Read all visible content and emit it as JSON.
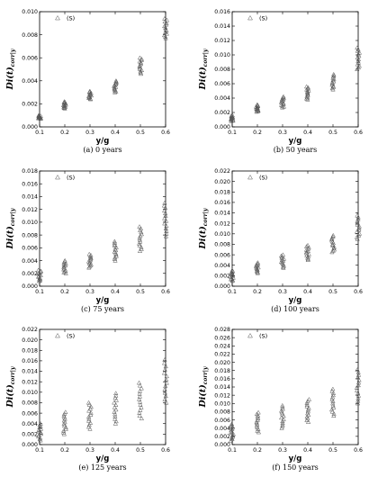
{
  "chart_data": [
    {
      "type": "scatter",
      "caption": "(a) 0 years",
      "xlabel": "y/g",
      "ylabel": "Di(t)",
      "ylabel_sub": "corr|y",
      "xlim": [
        0.1,
        0.6
      ],
      "ylim": [
        0,
        0.01
      ],
      "yticks": [
        "0.000",
        "0.002",
        "0.004",
        "0.006",
        "0.008",
        "0.010"
      ],
      "xticks": [
        "0.1",
        "0.2",
        "0.3",
        "0.4",
        "0.5",
        "0.6"
      ],
      "legend": "(S)",
      "series": [
        {
          "marker": "triangle",
          "ranges": [
            {
              "x": 0.1,
              "min": 0.0007,
              "max": 0.001
            },
            {
              "x": 0.2,
              "min": 0.0016,
              "max": 0.0022
            },
            {
              "x": 0.3,
              "min": 0.0024,
              "max": 0.0031
            },
            {
              "x": 0.4,
              "min": 0.003,
              "max": 0.004
            },
            {
              "x": 0.5,
              "min": 0.0046,
              "max": 0.006
            },
            {
              "x": 0.6,
              "min": 0.0077,
              "max": 0.0094
            }
          ]
        }
      ]
    },
    {
      "type": "scatter",
      "caption": "(b) 50 years",
      "xlabel": "y/g",
      "ylabel": "Di(t)",
      "ylabel_sub": "corr|y",
      "xlim": [
        0.1,
        0.6
      ],
      "ylim": [
        0,
        0.016
      ],
      "yticks": [
        "0.000",
        "0.002",
        "0.004",
        "0.006",
        "0.008",
        "0.010",
        "0.012",
        "0.014",
        "0.016"
      ],
      "xticks": [
        "0.1",
        "0.2",
        "0.3",
        "0.4",
        "0.5",
        "0.6"
      ],
      "legend": "(S)",
      "series": [
        {
          "marker": "triangle",
          "ranges": [
            {
              "x": 0.1,
              "min": 0.0008,
              "max": 0.0016
            },
            {
              "x": 0.2,
              "min": 0.0021,
              "max": 0.0031
            },
            {
              "x": 0.3,
              "min": 0.0027,
              "max": 0.0042
            },
            {
              "x": 0.4,
              "min": 0.0038,
              "max": 0.0056
            },
            {
              "x": 0.5,
              "min": 0.0052,
              "max": 0.0073
            },
            {
              "x": 0.6,
              "min": 0.008,
              "max": 0.011
            }
          ]
        }
      ]
    },
    {
      "type": "scatter",
      "caption": "(c) 75 years",
      "xlabel": "y/g",
      "ylabel": "Di(t)",
      "ylabel_sub": "corr|y",
      "xlim": [
        0.1,
        0.6
      ],
      "ylim": [
        0,
        0.018
      ],
      "yticks": [
        "0.000",
        "0.002",
        "0.004",
        "0.006",
        "0.008",
        "0.010",
        "0.012",
        "0.014",
        "0.016",
        "0.018"
      ],
      "xticks": [
        "0.1",
        "0.2",
        "0.3",
        "0.4",
        "0.5",
        "0.6"
      ],
      "legend": "(S)",
      "series": [
        {
          "marker": "triangle",
          "ranges": [
            {
              "x": 0.1,
              "min": 0.0008,
              "max": 0.0025
            },
            {
              "x": 0.2,
              "min": 0.002,
              "max": 0.004
            },
            {
              "x": 0.3,
              "min": 0.0029,
              "max": 0.005
            },
            {
              "x": 0.4,
              "min": 0.004,
              "max": 0.007
            },
            {
              "x": 0.5,
              "min": 0.0055,
              "max": 0.0093
            },
            {
              "x": 0.6,
              "min": 0.0078,
              "max": 0.013
            }
          ]
        }
      ]
    },
    {
      "type": "scatter",
      "caption": "(d) 100 years",
      "xlabel": "y/g",
      "ylabel": "Di(t)",
      "ylabel_sub": "corr|y",
      "xlim": [
        0.1,
        0.6
      ],
      "ylim": [
        0,
        0.022
      ],
      "yticks": [
        "0.000",
        "0.002",
        "0.004",
        "0.006",
        "0.008",
        "0.010",
        "0.012",
        "0.014",
        "0.016",
        "0.018",
        "0.020",
        "0.022"
      ],
      "xticks": [
        "0.1",
        "0.2",
        "0.3",
        "0.4",
        "0.5",
        "0.6"
      ],
      "legend": "(S)",
      "series": [
        {
          "marker": "triangle",
          "ranges": [
            {
              "x": 0.1,
              "min": 0.001,
              "max": 0.003
            },
            {
              "x": 0.2,
              "min": 0.0025,
              "max": 0.0045
            },
            {
              "x": 0.3,
              "min": 0.0035,
              "max": 0.006
            },
            {
              "x": 0.4,
              "min": 0.005,
              "max": 0.0078
            },
            {
              "x": 0.5,
              "min": 0.0065,
              "max": 0.0097
            },
            {
              "x": 0.6,
              "min": 0.009,
              "max": 0.0135
            }
          ]
        }
      ]
    },
    {
      "type": "scatter",
      "caption": "(e) 125 years",
      "xlabel": "y/g",
      "ylabel": "Di(t)",
      "ylabel_sub": "corr|y",
      "xlim": [
        0.1,
        0.6
      ],
      "ylim": [
        0,
        0.022
      ],
      "yticks": [
        "0.000",
        "0.002",
        "0.004",
        "0.006",
        "0.008",
        "0.010",
        "0.012",
        "0.014",
        "0.016",
        "0.018",
        "0.020",
        "0.022"
      ],
      "xticks": [
        "0.1",
        "0.2",
        "0.3",
        "0.4",
        "0.5",
        "0.6"
      ],
      "legend": "(S)",
      "series": [
        {
          "marker": "triangle",
          "ranges": [
            {
              "x": 0.1,
              "min": 0.0008,
              "max": 0.004
            },
            {
              "x": 0.2,
              "min": 0.002,
              "max": 0.0062
            },
            {
              "x": 0.3,
              "min": 0.003,
              "max": 0.008
            },
            {
              "x": 0.4,
              "min": 0.004,
              "max": 0.0098
            },
            {
              "x": 0.5,
              "min": 0.005,
              "max": 0.0118
            },
            {
              "x": 0.6,
              "min": 0.008,
              "max": 0.0162
            }
          ]
        }
      ]
    },
    {
      "type": "scatter",
      "caption": "(f) 150 years",
      "xlabel": "y/g",
      "ylabel": "Di(t)",
      "ylabel_sub": "corr|y",
      "xlim": [
        0.1,
        0.6
      ],
      "ylim": [
        0,
        0.028
      ],
      "yticks": [
        "0.000",
        "0.002",
        "0.004",
        "0.006",
        "0.008",
        "0.010",
        "0.012",
        "0.014",
        "0.016",
        "0.018",
        "0.020",
        "0.022",
        "0.024",
        "0.026",
        "0.028"
      ],
      "xticks": [
        "0.1",
        "0.2",
        "0.3",
        "0.4",
        "0.5",
        "0.6"
      ],
      "legend": "(S)",
      "series": [
        {
          "marker": "triangle",
          "ranges": [
            {
              "x": 0.1,
              "min": 0.001,
              "max": 0.005
            },
            {
              "x": 0.2,
              "min": 0.003,
              "max": 0.0078
            },
            {
              "x": 0.3,
              "min": 0.004,
              "max": 0.0095
            },
            {
              "x": 0.4,
              "min": 0.0055,
              "max": 0.011
            },
            {
              "x": 0.5,
              "min": 0.007,
              "max": 0.0135
            },
            {
              "x": 0.6,
              "min": 0.01,
              "max": 0.0182
            }
          ]
        }
      ]
    }
  ]
}
